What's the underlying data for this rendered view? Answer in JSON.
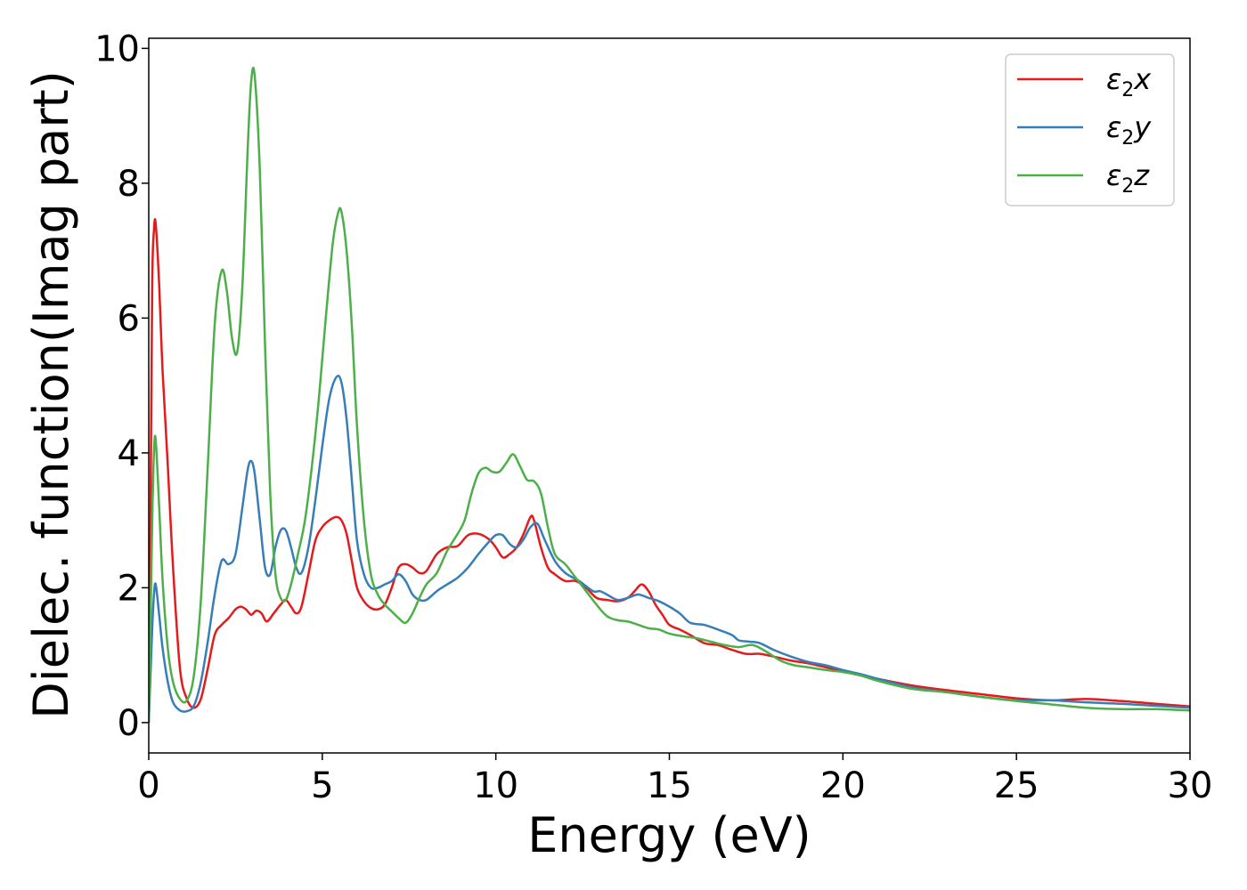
{
  "chart_data": {
    "type": "line",
    "title": "",
    "xlabel": "Energy (eV)",
    "ylabel": "Dielec. function(Imag part)",
    "xlim": [
      0,
      30
    ],
    "ylim": [
      -0.45,
      10.15
    ],
    "xticks": [
      0,
      5,
      10,
      15,
      20,
      25,
      30
    ],
    "yticks": [
      0,
      2,
      4,
      6,
      8,
      10
    ],
    "grid": false,
    "legend_position": "top-right",
    "series": [
      {
        "name": "ε2x",
        "legend_base": "ε",
        "legend_sub": "2",
        "legend_suffix": "x",
        "color": "#e41a1c",
        "x": [
          0,
          0.05,
          0.1,
          0.15,
          0.2,
          0.3,
          0.4,
          0.55,
          0.7,
          0.9,
          1.1,
          1.3,
          1.5,
          1.7,
          1.9,
          2.1,
          2.3,
          2.5,
          2.65,
          2.8,
          2.95,
          3.1,
          3.25,
          3.4,
          3.6,
          3.8,
          3.95,
          4.1,
          4.25,
          4.4,
          4.6,
          4.8,
          5.0,
          5.2,
          5.4,
          5.55,
          5.7,
          5.85,
          6.0,
          6.2,
          6.4,
          6.6,
          6.8,
          7.0,
          7.2,
          7.4,
          7.6,
          7.8,
          8.0,
          8.3,
          8.6,
          8.9,
          9.2,
          9.5,
          9.8,
          10.0,
          10.2,
          10.4,
          10.6,
          10.8,
          11.0,
          11.1,
          11.3,
          11.5,
          11.7,
          12.0,
          12.3,
          12.6,
          12.9,
          13.2,
          13.5,
          13.8,
          14.0,
          14.2,
          14.4,
          14.6,
          14.8,
          15.0,
          15.3,
          15.6,
          16.0,
          16.4,
          16.8,
          17.2,
          17.6,
          18.0,
          18.5,
          19.0,
          19.5,
          20.0,
          20.5,
          21.0,
          22.0,
          23.0,
          24.0,
          25.0,
          26.0,
          27.0,
          28.0,
          29.0,
          30.0
        ],
        "values": [
          0.0,
          3.0,
          6.5,
          7.3,
          7.4,
          6.5,
          5.2,
          3.8,
          2.3,
          0.8,
          0.35,
          0.22,
          0.35,
          0.8,
          1.3,
          1.45,
          1.55,
          1.68,
          1.72,
          1.68,
          1.6,
          1.66,
          1.62,
          1.5,
          1.62,
          1.75,
          1.82,
          1.72,
          1.62,
          1.72,
          2.2,
          2.7,
          2.9,
          3.0,
          3.05,
          3.0,
          2.8,
          2.4,
          2.0,
          1.8,
          1.7,
          1.68,
          1.75,
          2.0,
          2.3,
          2.35,
          2.3,
          2.22,
          2.25,
          2.5,
          2.6,
          2.62,
          2.78,
          2.8,
          2.72,
          2.6,
          2.45,
          2.5,
          2.6,
          2.8,
          3.05,
          3.0,
          2.6,
          2.3,
          2.2,
          2.1,
          2.1,
          2.0,
          1.85,
          1.82,
          1.8,
          1.85,
          1.95,
          2.05,
          1.95,
          1.75,
          1.6,
          1.45,
          1.38,
          1.3,
          1.18,
          1.15,
          1.08,
          1.02,
          1.02,
          0.98,
          0.92,
          0.88,
          0.82,
          0.76,
          0.7,
          0.65,
          0.55,
          0.48,
          0.42,
          0.36,
          0.33,
          0.35,
          0.32,
          0.28,
          0.24
        ]
      },
      {
        "name": "ε2y",
        "legend_base": "ε",
        "legend_sub": "2",
        "legend_suffix": "y",
        "color": "#377eb8",
        "x": [
          0,
          0.05,
          0.1,
          0.15,
          0.2,
          0.3,
          0.4,
          0.55,
          0.7,
          0.9,
          1.1,
          1.3,
          1.5,
          1.7,
          1.9,
          2.1,
          2.3,
          2.5,
          2.7,
          2.85,
          2.95,
          3.05,
          3.2,
          3.35,
          3.5,
          3.65,
          3.8,
          3.95,
          4.1,
          4.25,
          4.4,
          4.6,
          4.8,
          5.0,
          5.2,
          5.4,
          5.55,
          5.7,
          5.85,
          6.0,
          6.2,
          6.4,
          6.6,
          6.8,
          7.0,
          7.2,
          7.4,
          7.6,
          7.8,
          8.0,
          8.3,
          8.6,
          8.9,
          9.2,
          9.5,
          9.8,
          10.0,
          10.2,
          10.4,
          10.6,
          10.8,
          11.0,
          11.2,
          11.4,
          11.7,
          12.0,
          12.4,
          12.8,
          13.0,
          13.2,
          13.5,
          13.8,
          14.1,
          14.4,
          14.7,
          15.0,
          15.3,
          15.6,
          16.0,
          16.4,
          16.8,
          17.0,
          17.3,
          17.6,
          18.0,
          18.5,
          19.0,
          19.5,
          20.0,
          20.5,
          21.0,
          22.0,
          23.0,
          24.0,
          25.0,
          26.0,
          27.0,
          28.0,
          29.0,
          30.0
        ],
        "values": [
          0.0,
          0.7,
          1.4,
          1.9,
          2.05,
          1.6,
          1.1,
          0.6,
          0.3,
          0.18,
          0.17,
          0.25,
          0.6,
          1.2,
          1.9,
          2.4,
          2.35,
          2.5,
          3.2,
          3.75,
          3.88,
          3.7,
          3.0,
          2.3,
          2.2,
          2.6,
          2.85,
          2.85,
          2.6,
          2.3,
          2.22,
          2.6,
          3.3,
          4.1,
          4.8,
          5.12,
          5.05,
          4.5,
          3.6,
          2.7,
          2.2,
          2.0,
          2.0,
          2.05,
          2.1,
          2.2,
          2.1,
          1.9,
          1.82,
          1.82,
          1.95,
          2.05,
          2.15,
          2.3,
          2.5,
          2.68,
          2.78,
          2.78,
          2.65,
          2.6,
          2.72,
          2.9,
          2.95,
          2.72,
          2.4,
          2.22,
          2.1,
          1.95,
          1.95,
          1.9,
          1.82,
          1.85,
          1.9,
          1.85,
          1.8,
          1.72,
          1.62,
          1.48,
          1.45,
          1.38,
          1.3,
          1.22,
          1.2,
          1.18,
          1.08,
          0.98,
          0.9,
          0.85,
          0.78,
          0.72,
          0.65,
          0.52,
          0.45,
          0.38,
          0.33,
          0.33,
          0.3,
          0.28,
          0.25,
          0.22
        ]
      },
      {
        "name": "ε2z",
        "legend_base": "ε",
        "legend_sub": "2",
        "legend_suffix": "z",
        "color": "#4daf4a",
        "x": [
          0,
          0.05,
          0.1,
          0.15,
          0.2,
          0.3,
          0.4,
          0.55,
          0.7,
          0.9,
          1.1,
          1.3,
          1.5,
          1.7,
          1.9,
          2.1,
          2.25,
          2.4,
          2.55,
          2.7,
          2.85,
          2.95,
          3.05,
          3.2,
          3.35,
          3.5,
          3.65,
          3.8,
          3.95,
          4.1,
          4.3,
          4.5,
          4.7,
          4.9,
          5.1,
          5.3,
          5.45,
          5.55,
          5.7,
          5.85,
          6.0,
          6.2,
          6.4,
          6.6,
          6.8,
          7.0,
          7.2,
          7.4,
          7.6,
          7.8,
          8.0,
          8.3,
          8.6,
          8.9,
          9.1,
          9.3,
          9.5,
          9.7,
          9.9,
          10.1,
          10.3,
          10.5,
          10.7,
          10.9,
          11.1,
          11.3,
          11.5,
          11.7,
          12.0,
          12.3,
          12.6,
          12.9,
          13.2,
          13.5,
          13.8,
          14.1,
          14.4,
          14.7,
          15.0,
          15.4,
          15.8,
          16.2,
          16.6,
          17.0,
          17.4,
          17.8,
          18.2,
          18.6,
          19.0,
          19.5,
          20.0,
          20.5,
          21.0,
          22.0,
          23.0,
          24.0,
          25.0,
          26.0,
          27.0,
          28.0,
          29.0,
          30.0
        ],
        "values": [
          0.0,
          1.5,
          3.0,
          4.0,
          4.2,
          3.2,
          2.1,
          1.1,
          0.6,
          0.35,
          0.33,
          0.7,
          1.8,
          3.8,
          5.9,
          6.7,
          6.4,
          5.7,
          5.5,
          6.5,
          8.5,
          9.5,
          9.6,
          8.2,
          5.6,
          3.4,
          2.2,
          1.85,
          1.82,
          2.05,
          2.5,
          3.0,
          3.8,
          4.8,
          6.0,
          7.1,
          7.55,
          7.58,
          7.0,
          5.9,
          4.4,
          3.0,
          2.2,
          1.9,
          1.75,
          1.65,
          1.55,
          1.48,
          1.62,
          1.85,
          2.05,
          2.22,
          2.55,
          2.8,
          3.0,
          3.4,
          3.7,
          3.78,
          3.72,
          3.72,
          3.85,
          3.98,
          3.8,
          3.6,
          3.58,
          3.4,
          2.9,
          2.5,
          2.35,
          2.15,
          1.95,
          1.75,
          1.58,
          1.52,
          1.5,
          1.45,
          1.4,
          1.38,
          1.32,
          1.28,
          1.25,
          1.2,
          1.15,
          1.12,
          1.15,
          1.05,
          0.92,
          0.85,
          0.82,
          0.78,
          0.75,
          0.7,
          0.62,
          0.5,
          0.45,
          0.38,
          0.32,
          0.27,
          0.22,
          0.2,
          0.2,
          0.18
        ]
      }
    ]
  }
}
